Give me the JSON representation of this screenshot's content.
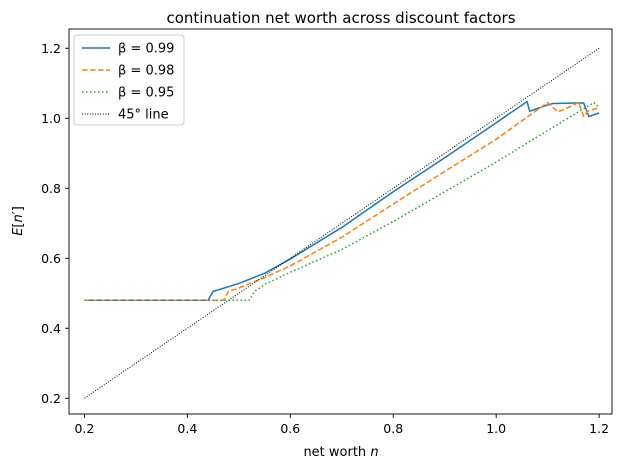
{
  "chart_data": {
    "type": "line",
    "title": "continuation net worth across discount factors",
    "xlabel": "net worth n",
    "ylabel": "E[n']",
    "xlim": [
      0.17,
      1.225
    ],
    "ylim": [
      0.155,
      1.255
    ],
    "xticks": [
      0.2,
      0.4,
      0.6,
      0.8,
      1.0,
      1.2
    ],
    "xtick_labels": [
      "0.2",
      "0.4",
      "0.6",
      "0.8",
      "1.0",
      "1.2"
    ],
    "yticks": [
      0.2,
      0.4,
      0.6,
      0.8,
      1.0,
      1.2
    ],
    "ytick_labels": [
      "0.2",
      "0.4",
      "0.6",
      "0.8",
      "1.0",
      "1.2"
    ],
    "grid": false,
    "legend_position": "top-left",
    "series": [
      {
        "name": "β = 0.99",
        "color": "#1f77b4",
        "style": "solid",
        "points": [
          [
            0.2,
            0.48
          ],
          [
            0.44,
            0.48
          ],
          [
            0.45,
            0.505
          ],
          [
            0.5,
            0.528
          ],
          [
            0.55,
            0.557
          ],
          [
            0.6,
            0.598
          ],
          [
            0.7,
            0.688
          ],
          [
            0.8,
            0.79
          ],
          [
            0.9,
            0.887
          ],
          [
            1.0,
            0.987
          ],
          [
            1.06,
            1.048
          ],
          [
            1.065,
            1.02
          ],
          [
            1.1,
            1.038
          ],
          [
            1.11,
            1.042
          ],
          [
            1.17,
            1.044
          ],
          [
            1.18,
            1.005
          ],
          [
            1.2,
            1.015
          ]
        ]
      },
      {
        "name": "β = 0.98",
        "color": "#ff7f0e",
        "style": "dashed",
        "points": [
          [
            0.2,
            0.48
          ],
          [
            0.47,
            0.48
          ],
          [
            0.48,
            0.505
          ],
          [
            0.5,
            0.515
          ],
          [
            0.55,
            0.545
          ],
          [
            0.6,
            0.578
          ],
          [
            0.7,
            0.66
          ],
          [
            0.8,
            0.755
          ],
          [
            0.9,
            0.848
          ],
          [
            1.0,
            0.94
          ],
          [
            1.1,
            1.045
          ],
          [
            1.12,
            1.018
          ],
          [
            1.15,
            1.037
          ],
          [
            1.16,
            1.046
          ],
          [
            1.17,
            1.005
          ],
          [
            1.18,
            1.022
          ],
          [
            1.2,
            1.03
          ]
        ]
      },
      {
        "name": "β = 0.95",
        "color": "#2ca02c",
        "style": "dotted",
        "points": [
          [
            0.2,
            0.48
          ],
          [
            0.52,
            0.48
          ],
          [
            0.53,
            0.505
          ],
          [
            0.55,
            0.525
          ],
          [
            0.6,
            0.56
          ],
          [
            0.7,
            0.625
          ],
          [
            0.8,
            0.705
          ],
          [
            0.9,
            0.79
          ],
          [
            1.0,
            0.875
          ],
          [
            1.1,
            0.965
          ],
          [
            1.19,
            1.045
          ],
          [
            1.2,
            1.03
          ]
        ]
      },
      {
        "name": "45° line",
        "color": "#000000",
        "style": "dotted-thin",
        "points": [
          [
            0.2,
            0.2
          ],
          [
            1.2,
            1.2
          ]
        ]
      }
    ]
  }
}
